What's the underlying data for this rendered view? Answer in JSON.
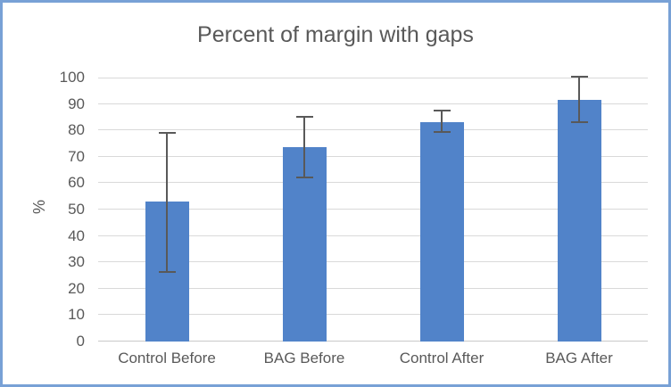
{
  "chart": {
    "colors": {
      "bar_fill": "#5183C9",
      "chart_border": "#78A1D6",
      "gridline": "#D9D9D9",
      "axis_line": "#C9C9C9",
      "text": "#595959",
      "error_bar": "#595959"
    }
  },
  "chart_data": {
    "type": "bar",
    "title": "Percent of margin with gaps",
    "ylabel": "%",
    "xlabel": "",
    "categories": [
      "Control Before",
      "BAG Before",
      "Control After",
      "BAG After"
    ],
    "values": [
      53,
      73.5,
      83,
      91.5
    ],
    "error_low": [
      26.5,
      62,
      79.5,
      83
    ],
    "error_high": [
      79,
      85,
      87.5,
      100.5
    ],
    "ylim": [
      0,
      100
    ],
    "ytick_step": 10,
    "ytick_labels": [
      "0",
      "10",
      "20",
      "30",
      "40",
      "50",
      "60",
      "70",
      "80",
      "90",
      "100"
    ],
    "grid": true,
    "legend": false
  }
}
